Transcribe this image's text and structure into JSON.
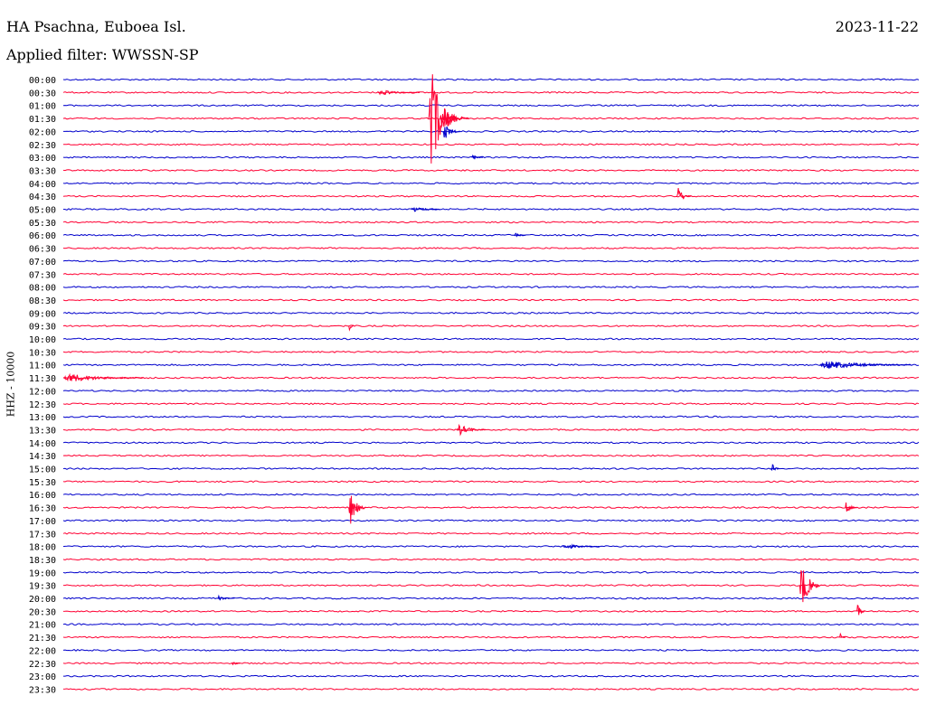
{
  "header": {
    "station": "HA Psachna, Euboea Isl.",
    "date": "2023-11-22",
    "filter": "Applied filter: WWSSN-SP"
  },
  "channel_label": "HHZ - 10000",
  "colors": {
    "odd_trace": "#0000cc",
    "even_trace": "#ff0033"
  },
  "chart_data": {
    "type": "line",
    "title": "HA Psachna, Euboea Isl.",
    "subtitle": "Applied filter: WWSSN-SP",
    "ylabel": "HHZ - 10000",
    "rows": [
      "00:00",
      "00:30",
      "01:00",
      "01:30",
      "02:00",
      "02:30",
      "03:00",
      "03:30",
      "04:00",
      "04:30",
      "05:00",
      "05:30",
      "06:00",
      "06:30",
      "07:00",
      "07:30",
      "08:00",
      "08:30",
      "09:00",
      "09:30",
      "10:00",
      "10:30",
      "11:00",
      "11:30",
      "12:00",
      "12:30",
      "13:00",
      "13:30",
      "14:00",
      "14:30",
      "15:00",
      "15:30",
      "16:00",
      "16:30",
      "17:00",
      "17:30",
      "18:00",
      "18:30",
      "19:00",
      "19:30",
      "20:00",
      "20:30",
      "21:00",
      "21:30",
      "22:00",
      "22:30",
      "23:00",
      "23:30"
    ],
    "row_minutes": 30,
    "grid": false,
    "events": [
      {
        "row": "00:30",
        "minute": 11.0,
        "amplitude": 3,
        "duration": 1.5
      },
      {
        "row": "01:30",
        "minute": 12.8,
        "amplitude": 60,
        "duration": 1.0
      },
      {
        "row": "01:30",
        "minute": 13.2,
        "amplitude": 16,
        "duration": 1.0
      },
      {
        "row": "02:00",
        "minute": 13.3,
        "amplitude": 10,
        "duration": 0.6
      },
      {
        "row": "03:00",
        "minute": 14.3,
        "amplitude": 4,
        "duration": 0.4
      },
      {
        "row": "04:30",
        "minute": 21.5,
        "amplitude": 10,
        "duration": 0.5
      },
      {
        "row": "05:00",
        "minute": 12.2,
        "amplitude": 4,
        "duration": 1.0
      },
      {
        "row": "06:00",
        "minute": 15.8,
        "amplitude": 3,
        "duration": 0.4
      },
      {
        "row": "09:30",
        "minute": 10.0,
        "amplitude": 6,
        "duration": 0.2
      },
      {
        "row": "11:00",
        "minute": 26.5,
        "amplitude": 5,
        "duration": 3.2
      },
      {
        "row": "11:30",
        "minute": 0.0,
        "amplitude": 5,
        "duration": 2.8
      },
      {
        "row": "13:30",
        "minute": 13.8,
        "amplitude": 6,
        "duration": 1.0
      },
      {
        "row": "15:00",
        "minute": 24.8,
        "amplitude": 6,
        "duration": 0.3
      },
      {
        "row": "16:30",
        "minute": 10.0,
        "amplitude": 20,
        "duration": 0.6
      },
      {
        "row": "16:30",
        "minute": 27.4,
        "amplitude": 8,
        "duration": 0.4
      },
      {
        "row": "18:00",
        "minute": 17.5,
        "amplitude": 3,
        "duration": 1.3
      },
      {
        "row": "19:30",
        "minute": 25.8,
        "amplitude": 28,
        "duration": 0.7
      },
      {
        "row": "20:00",
        "minute": 5.4,
        "amplitude": 3,
        "duration": 0.6
      },
      {
        "row": "20:30",
        "minute": 27.8,
        "amplitude": 8,
        "duration": 0.3
      },
      {
        "row": "21:30",
        "minute": 27.2,
        "amplitude": 5,
        "duration": 0.2
      },
      {
        "row": "22:30",
        "minute": 5.9,
        "amplitude": 3,
        "duration": 0.3
      }
    ]
  }
}
